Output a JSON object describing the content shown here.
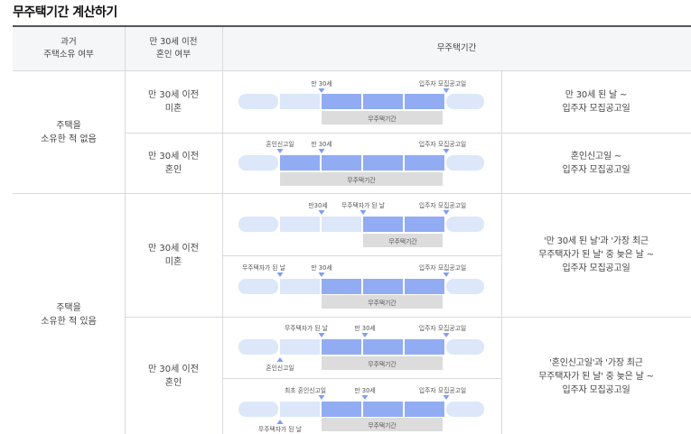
{
  "title": "무주택기간 계산하기",
  "header": {
    "col1": [
      "과거",
      "주택소유 여부"
    ],
    "col2": [
      "만 30세 이전",
      "혼인 여부"
    ],
    "col3": "무주택기간"
  },
  "rows": {
    "never_owned": [
      "주택을",
      "소유한 적 없음"
    ],
    "owned": [
      "주택을",
      "소유한 적 있음"
    ],
    "unmarried": [
      "만 30세 이전",
      "미혼"
    ],
    "married": [
      "만 30세 이전",
      "혼인"
    ]
  },
  "results": {
    "r1": [
      "만 30세 된 날 ~",
      "입주자 모집공고일"
    ],
    "r2": [
      "혼인신고일 ~",
      "입주자 모집공고일"
    ],
    "r3": [
      "'만 30세 된 날'과 '가장 최근",
      "무주택자가 된 날' 중 늦은 날 ~",
      "입주자 모집공고일"
    ],
    "r4": [
      "'혼인신고일'과 '가장 최근",
      "무주택자가 된 날' 중 늦은 날 ~",
      "입주자 모집공고일"
    ]
  },
  "diagram": {
    "period": "무주택기간",
    "age30": "만 30세",
    "age30_nospace": "만30세",
    "notice": "입주자 모집공고일",
    "marriage": "혼인신고일",
    "homeless": "무주택자가 된 날",
    "first_marriage": "최초 혼인신고일"
  },
  "colors": {
    "bar_light": "#dde7fa",
    "bar_active": "#92acf3",
    "marker": "#7f9ef0",
    "period_bg": "#dcdcdc"
  }
}
